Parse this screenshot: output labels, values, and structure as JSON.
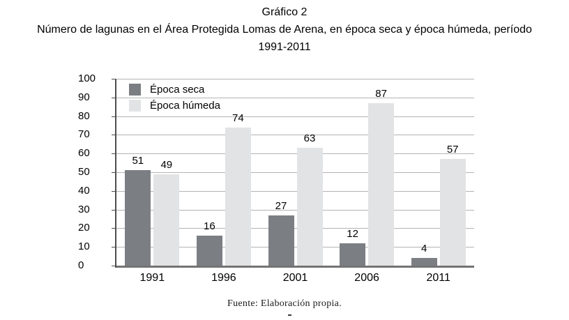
{
  "title": {
    "line1": "Gráfico 2",
    "line2": "Número de lagunas en el Área Protegida Lomas de Arena, en época seca y época húmeda, período",
    "line3": "1991-2011"
  },
  "footer": {
    "source": "Fuente: Elaboración propia."
  },
  "chart_data": {
    "type": "bar",
    "title": "Gráfico 2 — Número de lagunas en el Área Protegida Lomas de Arena, en época seca y época húmeda, período 1991-2011",
    "categories": [
      "1991",
      "1996",
      "2001",
      "2006",
      "2011"
    ],
    "series": [
      {
        "name": "Época seca",
        "color": "#7b7e83",
        "values": [
          51,
          16,
          27,
          12,
          4
        ]
      },
      {
        "name": "Época húmeda",
        "color": "#e2e3e5",
        "values": [
          49,
          74,
          63,
          87,
          57
        ]
      }
    ],
    "ylim": [
      0,
      100
    ],
    "yticks": [
      0,
      10,
      20,
      30,
      40,
      50,
      60,
      70,
      80,
      90,
      100
    ],
    "xlabel": "",
    "ylabel": "",
    "grid": true,
    "value_labels": true,
    "legend_position": "top-left-inside",
    "colors": {
      "gridline": "#b3b3b3",
      "y_axis_line": "#4d4d4d",
      "x_axis_line": "#737373",
      "text": "#000000"
    }
  }
}
